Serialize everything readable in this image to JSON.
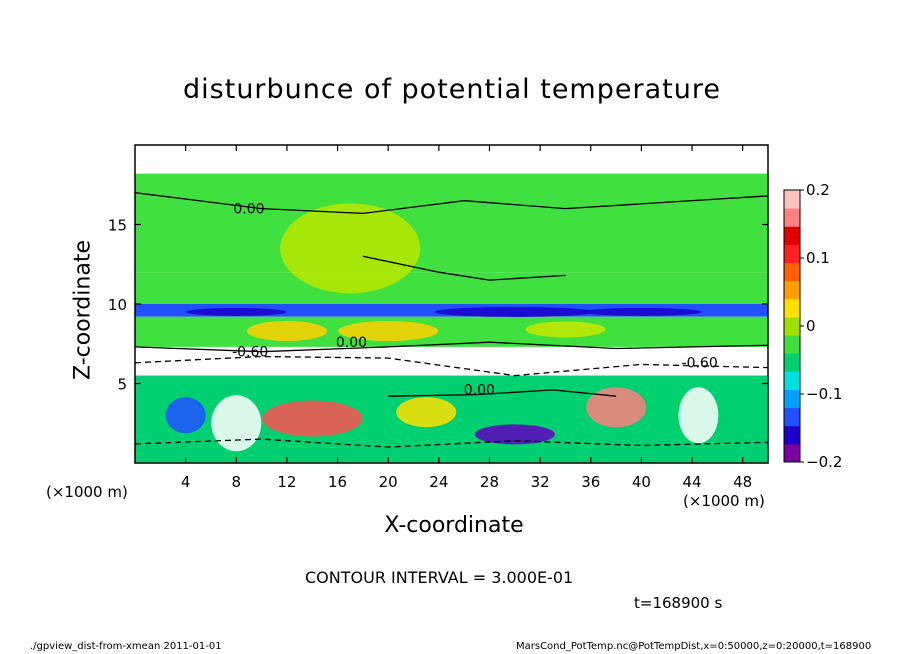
{
  "chart_data": {
    "type": "heatmap",
    "title": "disturbunce of potential temperature",
    "xlabel": "X-coordinate",
    "ylabel": "Z-coordinate",
    "x_unit": "(×1000 m)",
    "x_unit_right": "(×1000 m)",
    "xlim": [
      0,
      50
    ],
    "ylim": [
      0,
      20
    ],
    "x_ticks": [
      4,
      8,
      12,
      16,
      20,
      24,
      28,
      32,
      36,
      40,
      44,
      48
    ],
    "y_ticks": [
      5,
      10,
      15
    ],
    "colorbar": {
      "min": -0.2,
      "max": 0.2,
      "ticks": [
        "0.2",
        "0.1",
        "0",
        "−0.1",
        "−0.2"
      ],
      "tick_values": [
        0.2,
        0.1,
        0,
        -0.1,
        -0.2
      ],
      "colors": [
        "#7a00a0",
        "#1a00c8",
        "#2050ff",
        "#00a0ff",
        "#00e0e0",
        "#00d070",
        "#40e040",
        "#a0e000",
        "#ffe000",
        "#ffa000",
        "#ff6000",
        "#ff2020",
        "#e00000",
        "#ff8080",
        "#ffc0c0"
      ]
    },
    "contour_labels": [
      {
        "text": "0.00",
        "x": 9,
        "z": 15.7
      },
      {
        "text": "0.00",
        "x": 17.1,
        "z": 7.3
      },
      {
        "text": "0.00",
        "x": 27.2,
        "z": 4.3
      },
      {
        "text": "-0.60",
        "x": 9.1,
        "z": 6.7
      },
      {
        "text": "-0.60",
        "x": 44.6,
        "z": 6.0
      }
    ],
    "regions": [
      {
        "z_from": 18.2,
        "z_to": 20,
        "color": "#ffffff"
      },
      {
        "z_from": 12.0,
        "z_to": 18.2,
        "color": "#40e040"
      },
      {
        "z_from": 10.0,
        "z_to": 12.0,
        "color": "#40e040"
      },
      {
        "z_from": 9.2,
        "z_to": 10.0,
        "color": "#2050ff"
      },
      {
        "z_from": 7.3,
        "z_to": 9.2,
        "color": "#40e040"
      },
      {
        "z_from": 5.5,
        "z_to": 7.3,
        "color": "#ffffff"
      },
      {
        "z_from": 0,
        "z_to": 5.5,
        "color": "#00d070"
      }
    ]
  },
  "contour_interval": "CONTOUR INTERVAL = 3.000E-01",
  "time_label": "t=168900  s",
  "footer_left": "./gpview_dist-from-xmean  2011-01-01",
  "footer_right": "MarsCond_PotTemp.nc@PotTempDist,x=0:50000,z=0:20000,t=168900"
}
